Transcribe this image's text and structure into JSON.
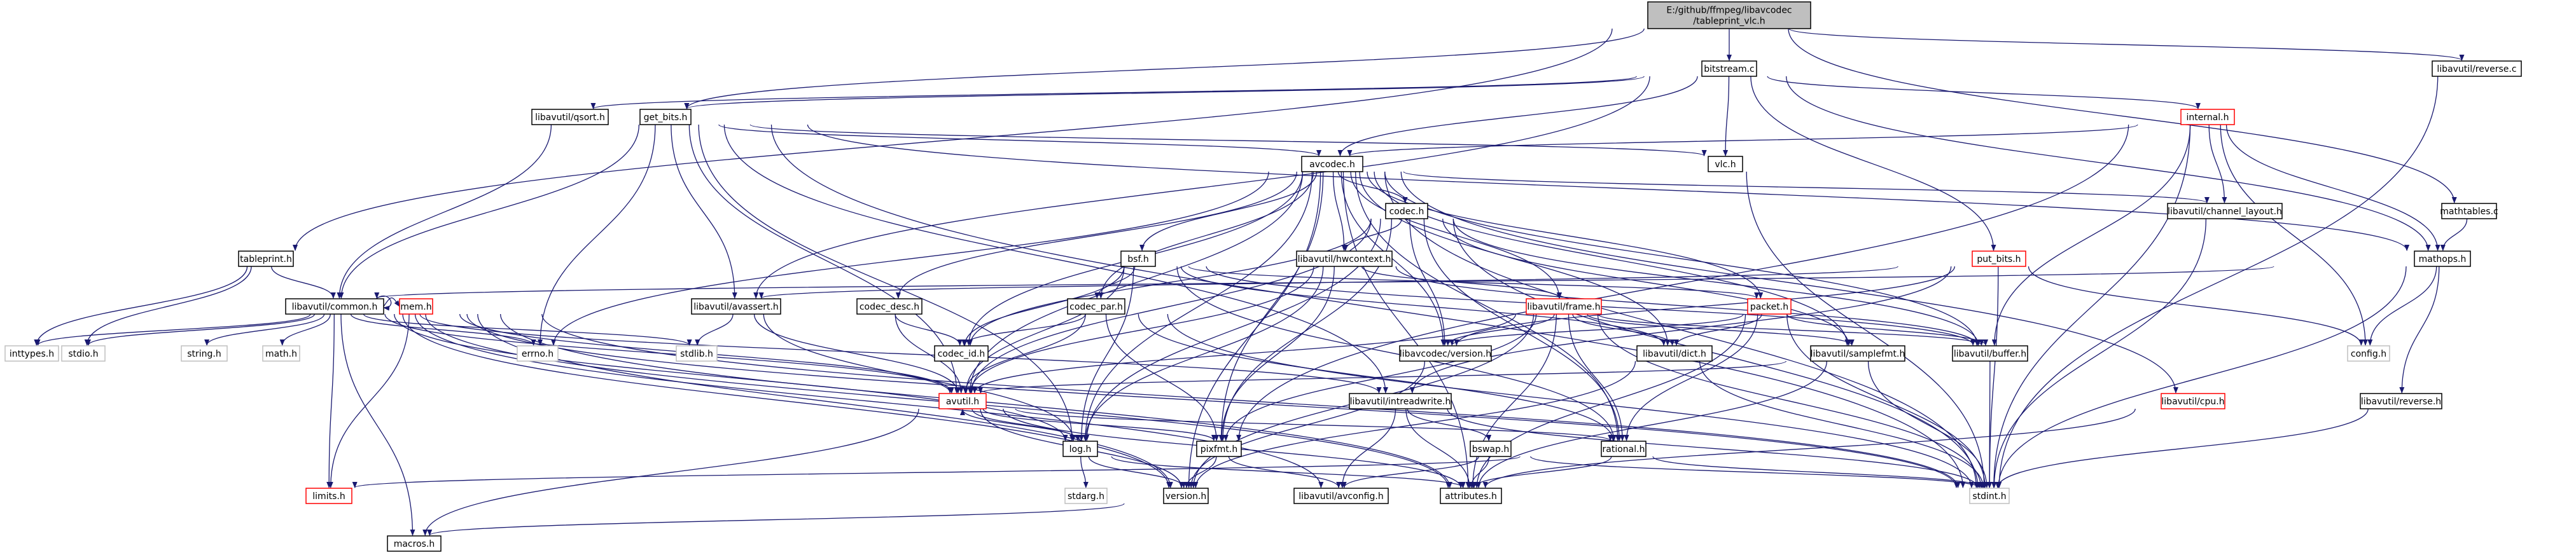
{
  "graph": {
    "title": "E:/github/ffmpeg/libavcodec/tableprint_vlc.h include dependency graph",
    "colors": {
      "edge": "#191970",
      "root_fill": "#bfbfbf",
      "node_fill": "#ffffff",
      "node_border": "#000000",
      "missing_border": "#ff0000",
      "external_border": "#bfbfbf"
    },
    "nodes": [
      {
        "id": "root",
        "lines": [
          "E:/github/ffmpeg/libavcodec",
          "/tableprint_vlc.h"
        ],
        "kind": "root"
      },
      {
        "id": "tableprint",
        "lines": [
          "tableprint.h"
        ],
        "kind": "normal"
      },
      {
        "id": "get_bits",
        "lines": [
          "get_bits.h"
        ],
        "kind": "normal"
      },
      {
        "id": "bitstream",
        "lines": [
          "bitstream.c"
        ],
        "kind": "normal"
      },
      {
        "id": "reverse_c",
        "lines": [
          "libavutil/reverse.c"
        ],
        "kind": "normal"
      },
      {
        "id": "mathtables",
        "lines": [
          "mathtables.c"
        ],
        "kind": "normal"
      },
      {
        "id": "qsort",
        "lines": [
          "libavutil/qsort.h"
        ],
        "kind": "normal"
      },
      {
        "id": "internal",
        "lines": [
          "internal.h"
        ],
        "kind": "missing"
      },
      {
        "id": "avcodec",
        "lines": [
          "avcodec.h"
        ],
        "kind": "normal"
      },
      {
        "id": "vlc",
        "lines": [
          "vlc.h"
        ],
        "kind": "normal"
      },
      {
        "id": "channel_layout",
        "lines": [
          "libavutil/channel_layout.h"
        ],
        "kind": "normal"
      },
      {
        "id": "mathops",
        "lines": [
          "mathops.h"
        ],
        "kind": "normal"
      },
      {
        "id": "codec",
        "lines": [
          "codec.h"
        ],
        "kind": "normal"
      },
      {
        "id": "bsf",
        "lines": [
          "bsf.h"
        ],
        "kind": "normal"
      },
      {
        "id": "hwcontext",
        "lines": [
          "libavutil/hwcontext.h"
        ],
        "kind": "normal"
      },
      {
        "id": "put_bits",
        "lines": [
          "put_bits.h"
        ],
        "kind": "missing"
      },
      {
        "id": "common",
        "lines": [
          "libavutil/common.h"
        ],
        "kind": "normal"
      },
      {
        "id": "avassert",
        "lines": [
          "libavutil/avassert.h"
        ],
        "kind": "normal"
      },
      {
        "id": "codec_desc",
        "lines": [
          "codec_desc.h"
        ],
        "kind": "normal"
      },
      {
        "id": "codec_par",
        "lines": [
          "codec_par.h"
        ],
        "kind": "normal"
      },
      {
        "id": "frame",
        "lines": [
          "libavutil/frame.h"
        ],
        "kind": "missing"
      },
      {
        "id": "packet",
        "lines": [
          "packet.h"
        ],
        "kind": "missing"
      },
      {
        "id": "config",
        "lines": [
          "config.h"
        ],
        "kind": "external"
      },
      {
        "id": "inttypes",
        "lines": [
          "inttypes.h"
        ],
        "kind": "external"
      },
      {
        "id": "stdio",
        "lines": [
          "stdio.h"
        ],
        "kind": "external"
      },
      {
        "id": "mem",
        "lines": [
          "mem.h"
        ],
        "kind": "missing"
      },
      {
        "id": "string",
        "lines": [
          "string.h"
        ],
        "kind": "external"
      },
      {
        "id": "math",
        "lines": [
          "math.h"
        ],
        "kind": "external"
      },
      {
        "id": "errno",
        "lines": [
          "errno.h"
        ],
        "kind": "external"
      },
      {
        "id": "stdlib",
        "lines": [
          "stdlib.h"
        ],
        "kind": "external"
      },
      {
        "id": "codec_id",
        "lines": [
          "codec_id.h"
        ],
        "kind": "normal"
      },
      {
        "id": "avcodec_version",
        "lines": [
          "libavcodec/version.h"
        ],
        "kind": "normal"
      },
      {
        "id": "dict",
        "lines": [
          "libavutil/dict.h"
        ],
        "kind": "normal"
      },
      {
        "id": "samplefmt",
        "lines": [
          "libavutil/samplefmt.h"
        ],
        "kind": "normal"
      },
      {
        "id": "buffer",
        "lines": [
          "libavutil/buffer.h"
        ],
        "kind": "normal"
      },
      {
        "id": "avutil",
        "lines": [
          "avutil.h"
        ],
        "kind": "missing"
      },
      {
        "id": "intreadwrite",
        "lines": [
          "libavutil/intreadwrite.h"
        ],
        "kind": "normal"
      },
      {
        "id": "cpu",
        "lines": [
          "libavutil/cpu.h"
        ],
        "kind": "missing"
      },
      {
        "id": "reverse_h",
        "lines": [
          "libavutil/reverse.h"
        ],
        "kind": "normal"
      },
      {
        "id": "bswap",
        "lines": [
          "bswap.h"
        ],
        "kind": "normal"
      },
      {
        "id": "log",
        "lines": [
          "log.h"
        ],
        "kind": "normal"
      },
      {
        "id": "pixfmt",
        "lines": [
          "pixfmt.h"
        ],
        "kind": "normal"
      },
      {
        "id": "rational",
        "lines": [
          "rational.h"
        ],
        "kind": "normal"
      },
      {
        "id": "limits",
        "lines": [
          "limits.h"
        ],
        "kind": "missing"
      },
      {
        "id": "stdarg",
        "lines": [
          "stdarg.h"
        ],
        "kind": "external"
      },
      {
        "id": "version",
        "lines": [
          "version.h"
        ],
        "kind": "normal"
      },
      {
        "id": "avconfig",
        "lines": [
          "libavutil/avconfig.h"
        ],
        "kind": "normal"
      },
      {
        "id": "attributes",
        "lines": [
          "attributes.h"
        ],
        "kind": "normal"
      },
      {
        "id": "stdint",
        "lines": [
          "stdint.h"
        ],
        "kind": "external"
      },
      {
        "id": "macros",
        "lines": [
          "macros.h"
        ],
        "kind": "normal"
      }
    ],
    "edges": [
      [
        "root",
        "tableprint"
      ],
      [
        "root",
        "get_bits"
      ],
      [
        "root",
        "bitstream"
      ],
      [
        "root",
        "reverse_c"
      ],
      [
        "root",
        "mathtables"
      ],
      [
        "tableprint",
        "common"
      ],
      [
        "tableprint",
        "inttypes"
      ],
      [
        "tableprint",
        "stdio"
      ],
      [
        "get_bits",
        "common"
      ],
      [
        "get_bits",
        "avassert"
      ],
      [
        "get_bits",
        "avcodec"
      ],
      [
        "get_bits",
        "vlc"
      ],
      [
        "get_bits",
        "mathops"
      ],
      [
        "get_bits",
        "log"
      ],
      [
        "get_bits",
        "stdint"
      ],
      [
        "get_bits",
        "intreadwrite"
      ],
      [
        "get_bits",
        "avutil"
      ],
      [
        "get_bits",
        "errno"
      ],
      [
        "bitstream",
        "qsort"
      ],
      [
        "bitstream",
        "internal"
      ],
      [
        "bitstream",
        "avcodec"
      ],
      [
        "bitstream",
        "vlc"
      ],
      [
        "bitstream",
        "avassert"
      ],
      [
        "bitstream",
        "put_bits"
      ],
      [
        "bitstream",
        "mathops"
      ],
      [
        "bitstream",
        "get_bits"
      ],
      [
        "reverse_c",
        "stdint"
      ],
      [
        "mathtables",
        "mathops"
      ],
      [
        "qsort",
        "common"
      ],
      [
        "internal",
        "avcodec"
      ],
      [
        "internal",
        "channel_layout"
      ],
      [
        "internal",
        "buffer"
      ],
      [
        "internal",
        "config"
      ],
      [
        "internal",
        "pixfmt"
      ],
      [
        "internal",
        "stdint"
      ],
      [
        "internal",
        "mathops"
      ],
      [
        "avcodec",
        "codec"
      ],
      [
        "avcodec",
        "bsf"
      ],
      [
        "avcodec",
        "hwcontext"
      ],
      [
        "avcodec",
        "codec_desc"
      ],
      [
        "avcodec",
        "codec_par"
      ],
      [
        "avcodec",
        "frame"
      ],
      [
        "avcodec",
        "packet"
      ],
      [
        "avcodec",
        "codec_id"
      ],
      [
        "avcodec",
        "avcodec_version"
      ],
      [
        "avcodec",
        "dict"
      ],
      [
        "avcodec",
        "samplefmt"
      ],
      [
        "avcodec",
        "buffer"
      ],
      [
        "avcodec",
        "avutil"
      ],
      [
        "avcodec",
        "log"
      ],
      [
        "avcodec",
        "pixfmt"
      ],
      [
        "avcodec",
        "rational"
      ],
      [
        "avcodec",
        "attributes"
      ],
      [
        "avcodec",
        "channel_layout"
      ],
      [
        "avcodec",
        "errno"
      ],
      [
        "avcodec",
        "cpu"
      ],
      [
        "avcodec",
        "stdint"
      ],
      [
        "avcodec",
        "version"
      ],
      [
        "vlc",
        "stdint"
      ],
      [
        "channel_layout",
        "stdint"
      ],
      [
        "mathops",
        "config"
      ],
      [
        "mathops",
        "common"
      ],
      [
        "mathops",
        "reverse_h"
      ],
      [
        "mathops",
        "stdint"
      ],
      [
        "codec",
        "codec_id"
      ],
      [
        "codec",
        "avcodec_version"
      ],
      [
        "codec",
        "hwcontext"
      ],
      [
        "codec",
        "samplefmt"
      ],
      [
        "codec",
        "log"
      ],
      [
        "codec",
        "pixfmt"
      ],
      [
        "codec",
        "rational"
      ],
      [
        "codec",
        "stdint"
      ],
      [
        "codec",
        "avutil"
      ],
      [
        "codec",
        "buffer"
      ],
      [
        "bsf",
        "codec_par"
      ],
      [
        "bsf",
        "packet"
      ],
      [
        "bsf",
        "codec_id"
      ],
      [
        "bsf",
        "dict"
      ],
      [
        "bsf",
        "log"
      ],
      [
        "bsf",
        "rational"
      ],
      [
        "bsf",
        "avutil"
      ],
      [
        "bsf",
        "buffer"
      ],
      [
        "hwcontext",
        "frame"
      ],
      [
        "hwcontext",
        "pixfmt"
      ],
      [
        "hwcontext",
        "buffer"
      ],
      [
        "hwcontext",
        "log"
      ],
      [
        "hwcontext",
        "avutil"
      ],
      [
        "put_bits",
        "config"
      ],
      [
        "put_bits",
        "avassert"
      ],
      [
        "put_bits",
        "intreadwrite"
      ],
      [
        "put_bits",
        "stdint"
      ],
      [
        "put_bits",
        "avcodec_version"
      ],
      [
        "common",
        "common"
      ],
      [
        "common",
        "inttypes"
      ],
      [
        "common",
        "stdio"
      ],
      [
        "common",
        "string"
      ],
      [
        "common",
        "math"
      ],
      [
        "common",
        "errno"
      ],
      [
        "common",
        "stdlib"
      ],
      [
        "common",
        "mem"
      ],
      [
        "common",
        "limits"
      ],
      [
        "common",
        "avutil"
      ],
      [
        "common",
        "log"
      ],
      [
        "common",
        "attributes"
      ],
      [
        "common",
        "macros"
      ],
      [
        "common",
        "intreadwrite"
      ],
      [
        "common",
        "version"
      ],
      [
        "common",
        "avconfig"
      ],
      [
        "common",
        "stdint"
      ],
      [
        "avassert",
        "stdlib"
      ],
      [
        "avassert",
        "avutil"
      ],
      [
        "avassert",
        "log"
      ],
      [
        "codec_desc",
        "codec_id"
      ],
      [
        "codec_desc",
        "avutil"
      ],
      [
        "codec_par",
        "codec_id"
      ],
      [
        "codec_par",
        "avutil"
      ],
      [
        "codec_par",
        "pixfmt"
      ],
      [
        "codec_par",
        "rational"
      ],
      [
        "codec_par",
        "stdint"
      ],
      [
        "frame",
        "avutil"
      ],
      [
        "frame",
        "buffer"
      ],
      [
        "frame",
        "dict"
      ],
      [
        "frame",
        "rational"
      ],
      [
        "frame",
        "samplefmt"
      ],
      [
        "frame",
        "pixfmt"
      ],
      [
        "frame",
        "version"
      ],
      [
        "frame",
        "stdint"
      ],
      [
        "frame",
        "attributes"
      ],
      [
        "frame",
        "avcodec_version"
      ],
      [
        "packet",
        "buffer"
      ],
      [
        "packet",
        "attributes"
      ],
      [
        "packet",
        "dict"
      ],
      [
        "packet",
        "rational"
      ],
      [
        "packet",
        "avcodec_version"
      ],
      [
        "packet",
        "stdint"
      ],
      [
        "mem",
        "limits"
      ],
      [
        "mem",
        "attributes"
      ],
      [
        "mem",
        "avutil"
      ],
      [
        "mem",
        "stdint"
      ],
      [
        "mem",
        "version"
      ],
      [
        "avcodec_version",
        "version"
      ],
      [
        "dict",
        "stdint"
      ],
      [
        "dict",
        "version"
      ],
      [
        "samplefmt",
        "avutil"
      ],
      [
        "samplefmt",
        "attributes"
      ],
      [
        "samplefmt",
        "stdint"
      ],
      [
        "buffer",
        "stdint"
      ],
      [
        "avutil",
        "log"
      ],
      [
        "avutil",
        "pixfmt"
      ],
      [
        "avutil",
        "rational"
      ],
      [
        "avutil",
        "attributes"
      ],
      [
        "avutil",
        "version"
      ],
      [
        "avutil",
        "macros"
      ],
      [
        "intreadwrite",
        "avconfig"
      ],
      [
        "intreadwrite",
        "attributes"
      ],
      [
        "intreadwrite",
        "bswap"
      ],
      [
        "intreadwrite",
        "stdint"
      ],
      [
        "cpu",
        "attributes"
      ],
      [
        "reverse_h",
        "stdint"
      ],
      [
        "bswap",
        "avconfig"
      ],
      [
        "bswap",
        "attributes"
      ],
      [
        "bswap",
        "stdint"
      ],
      [
        "log",
        "avutil"
      ],
      [
        "log",
        "stdarg"
      ],
      [
        "log",
        "attributes"
      ],
      [
        "log",
        "version"
      ],
      [
        "pixfmt",
        "avconfig"
      ],
      [
        "pixfmt",
        "version"
      ],
      [
        "rational",
        "attributes"
      ],
      [
        "rational",
        "limits"
      ],
      [
        "rational",
        "stdint"
      ],
      [
        "version",
        "macros"
      ]
    ]
  }
}
